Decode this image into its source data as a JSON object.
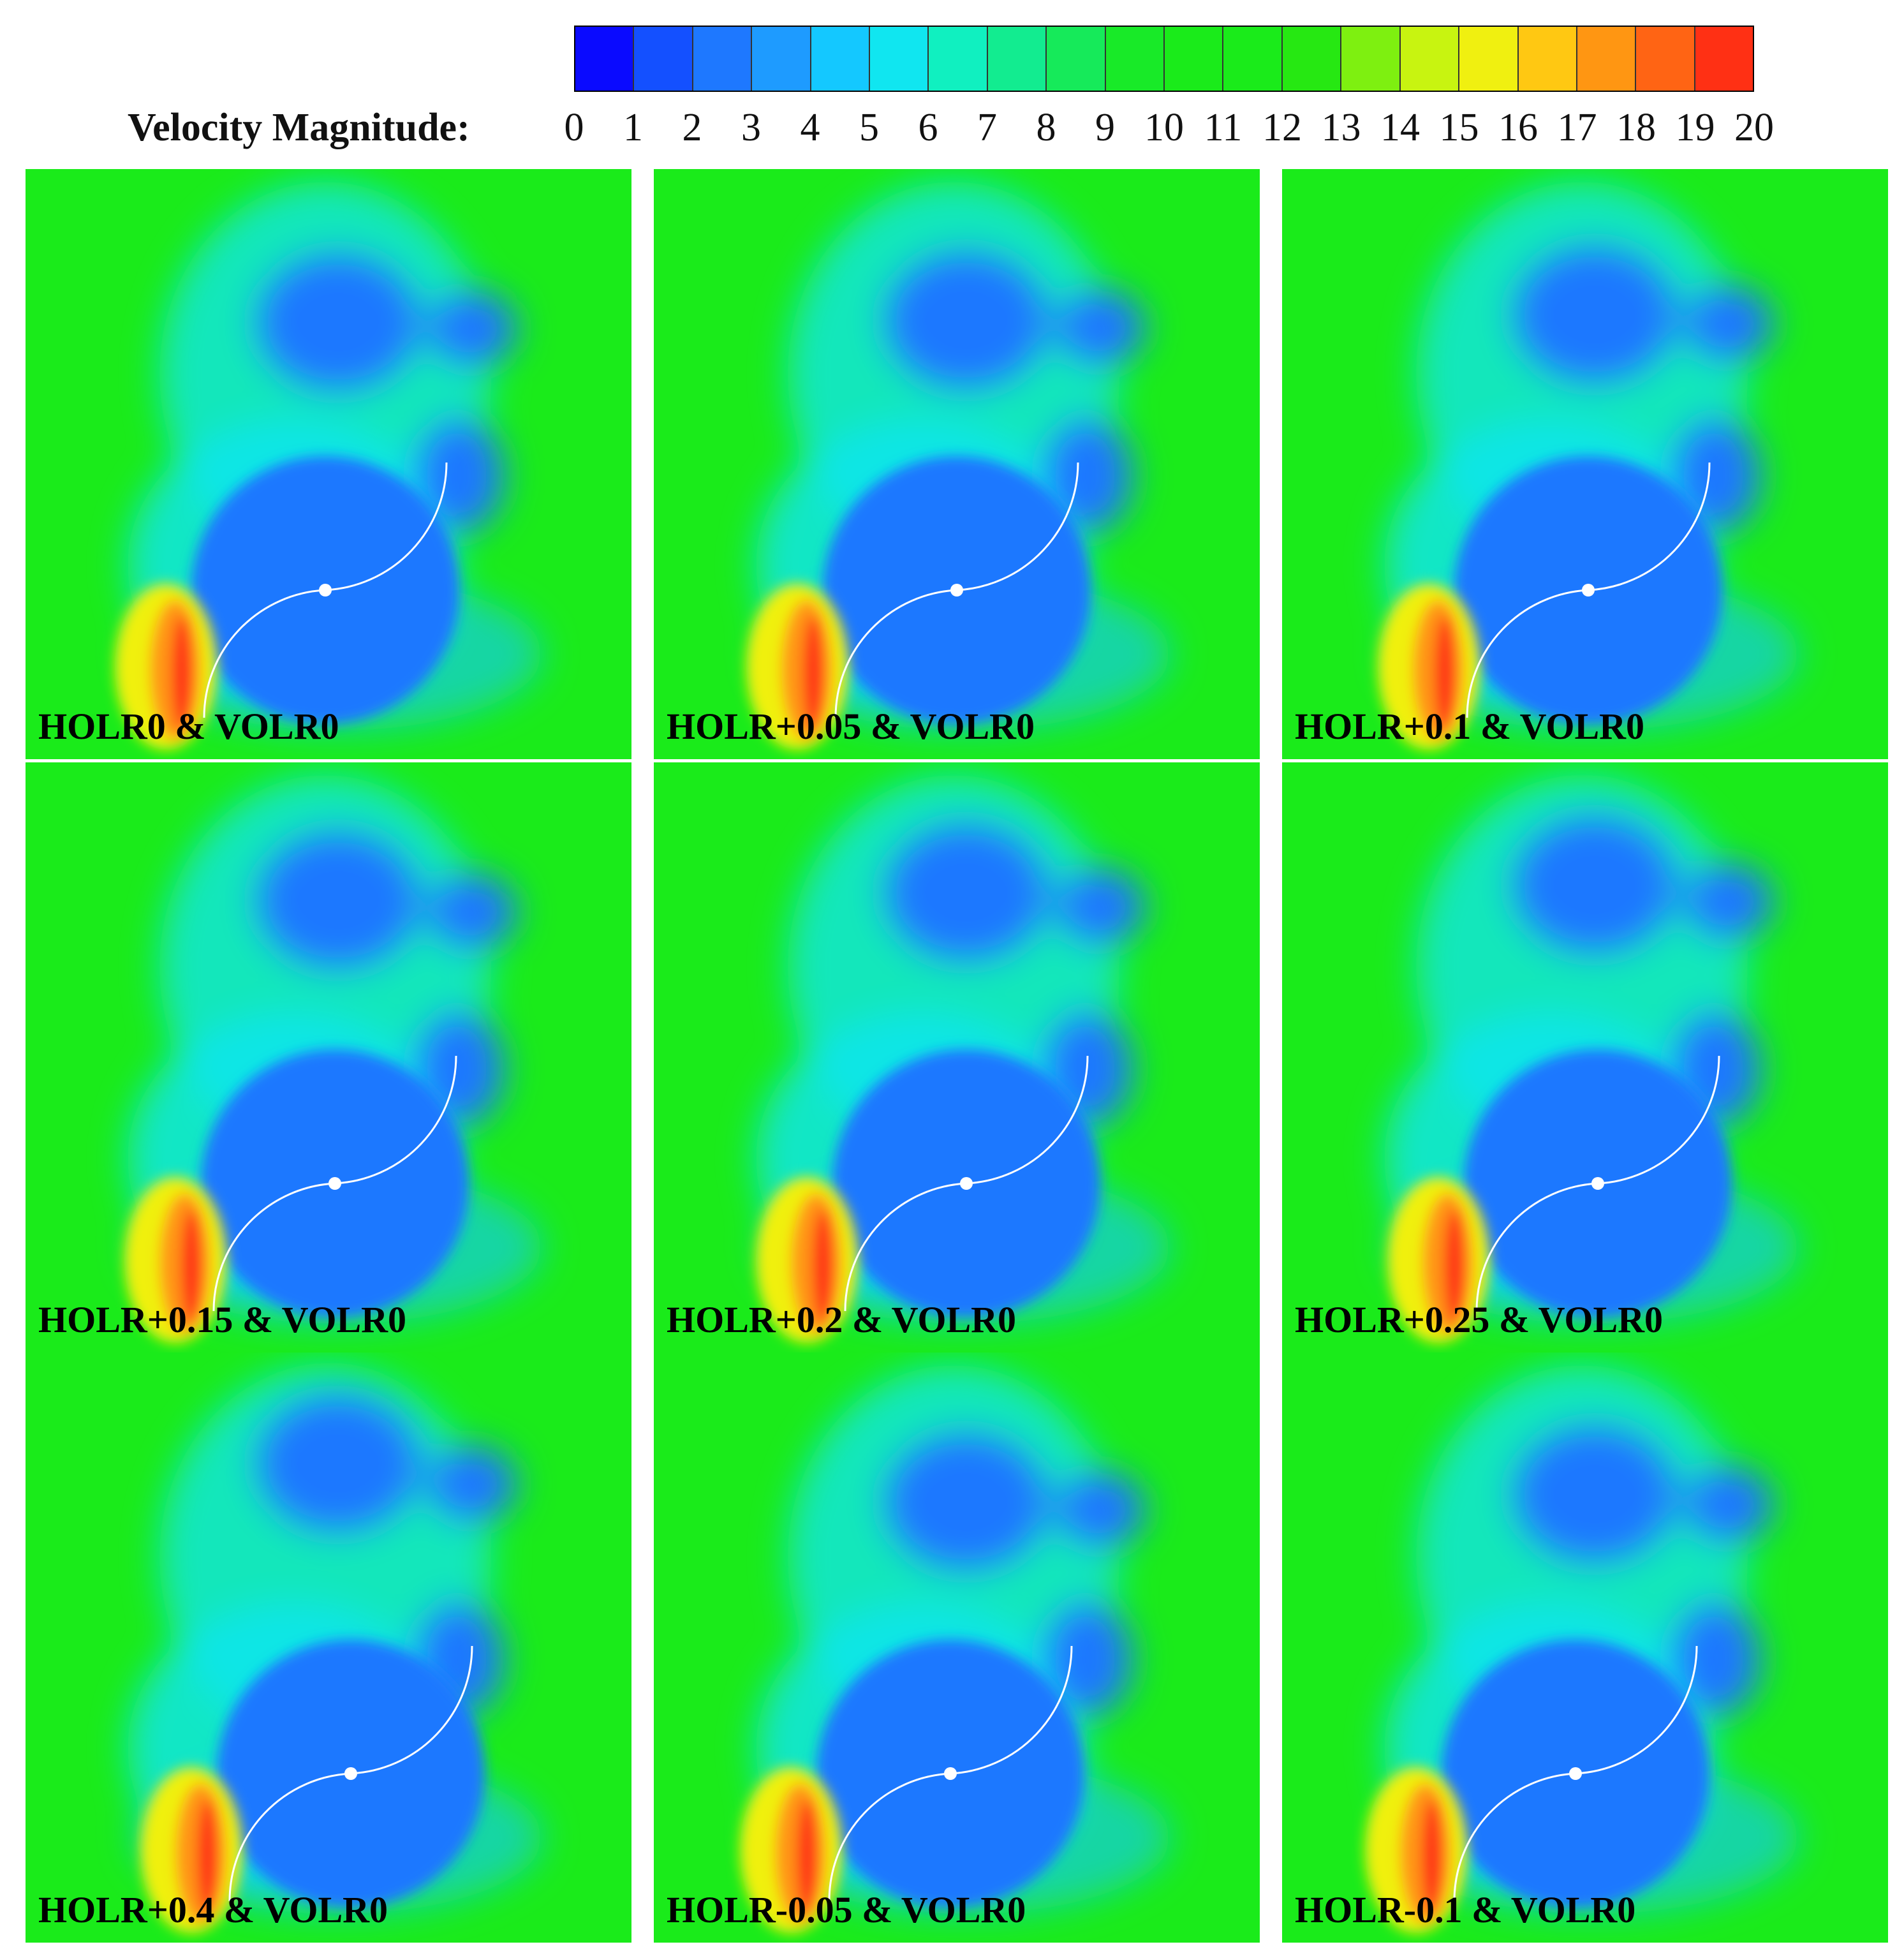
{
  "legend": {
    "title": "Velocity Magnitude:",
    "ticks": [
      "0",
      "1",
      "2",
      "3",
      "4",
      "5",
      "6",
      "7",
      "8",
      "9",
      "10",
      "11",
      "12",
      "13",
      "14",
      "15",
      "16",
      "17",
      "18",
      "19",
      "20"
    ],
    "colors": [
      "#0a0aff",
      "#1450ff",
      "#1e78ff",
      "#1e9bff",
      "#14c8ff",
      "#10e6f0",
      "#10f0c0",
      "#12ec90",
      "#16ea5a",
      "#18ea28",
      "#1aeb1a",
      "#1aeb1a",
      "#26e812",
      "#7ef010",
      "#c8f410",
      "#f0f010",
      "#ffc812",
      "#ff9612",
      "#ff6414",
      "#ff3014"
    ]
  },
  "panels": [
    {
      "label": "HOLR0 & VOLR0"
    },
    {
      "label": "HOLR+0.05 & VOLR0"
    },
    {
      "label": "HOLR+0.1 & VOLR0"
    },
    {
      "label": "HOLR+0.15 & VOLR0"
    },
    {
      "label": "HOLR+0.2 & VOLR0"
    },
    {
      "label": "HOLR+0.25 & VOLR0"
    },
    {
      "label": "HOLR+0.4 & VOLR0"
    },
    {
      "label": "HOLR-0.05 & VOLR0"
    },
    {
      "label": "HOLR-0.1 & VOLR0"
    }
  ]
}
